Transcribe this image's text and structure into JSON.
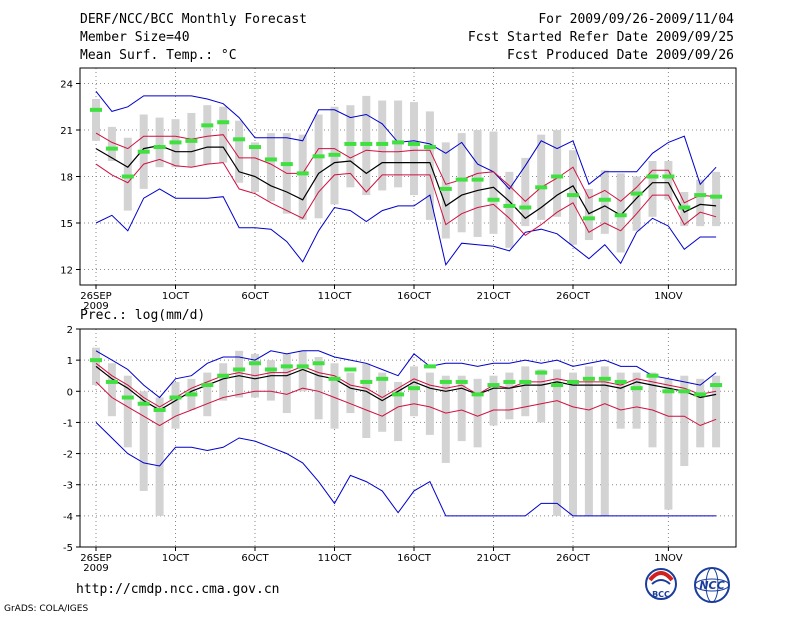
{
  "header": {
    "title": "DERF/NCC/BCC Monthly Forecast",
    "member_size": "Member Size=40",
    "variable": "Mean Surf. Temp.: °C",
    "period": "For 2009/09/26-2009/11/04",
    "started": "Fcst Started Refer Date 2009/09/25",
    "produced": "Fcst Produced Date 2009/09/26"
  },
  "footer": {
    "url": "http://cmdp.ncc.cma.gov.cn",
    "credit": "GrADS: COLA/IGES"
  },
  "logos": {
    "bcc_text": "BCC",
    "ncc_text": "NCC"
  },
  "colors": {
    "spread": "#d3d3d3",
    "median": "#40e040",
    "mean": "#000000",
    "std": "#d01040",
    "minmax": "#0000cc",
    "grid": "#888888"
  },
  "chart_data": [
    {
      "type": "line",
      "title": "Mean Surf. Temp.: °C",
      "x_tick_labels": [
        "26SEP",
        "1OCT",
        "6OCT",
        "11OCT",
        "16OCT",
        "21OCT",
        "26OCT",
        "1NOV"
      ],
      "x_year_label": "2009",
      "days": 40,
      "ylim": [
        11,
        25
      ],
      "yticks": [
        12,
        15,
        18,
        21,
        24
      ],
      "series": [
        {
          "name": "max",
          "values": [
            23.5,
            22.2,
            22.5,
            23.2,
            23.2,
            23.2,
            23.2,
            23,
            22.7,
            21.8,
            20.5,
            20.5,
            20.5,
            20.3,
            22.3,
            22.3,
            21.8,
            22,
            21.4,
            20.2,
            20.3,
            20.1,
            19.5,
            20.2,
            18.8,
            18.3,
            17.2,
            18.7,
            20.3,
            19.8,
            20.3,
            17.5,
            18.3,
            18.3,
            18.3,
            19.5,
            20.2,
            20.6,
            17.5,
            18.6
          ]
        },
        {
          "name": "mean_plus_std",
          "values": [
            20.8,
            20.2,
            19.8,
            20.6,
            20.6,
            20.6,
            20.4,
            20.6,
            20.7,
            19.2,
            19.2,
            18.8,
            18.2,
            18.2,
            19.8,
            19.8,
            19.2,
            19.7,
            19.6,
            19.6,
            19.7,
            19.7,
            17.5,
            17.8,
            18.2,
            18.3,
            17.4,
            16.4,
            17.3,
            17.9,
            18.6,
            16.6,
            17.1,
            16.4,
            17.3,
            18.4,
            18.4,
            16.3,
            16.8,
            16.7
          ]
        },
        {
          "name": "mean",
          "values": [
            19.8,
            19.2,
            18.6,
            19.8,
            20,
            19.6,
            19.6,
            19.9,
            19.9,
            18.3,
            18,
            17.4,
            17,
            16.5,
            18.2,
            18.9,
            19,
            18.2,
            18.9,
            18.9,
            18.9,
            18.9,
            16.1,
            16.8,
            17.1,
            17.3,
            16.4,
            15.3,
            16,
            16.8,
            17.4,
            15.6,
            16.1,
            15.5,
            16.6,
            17.6,
            17.6,
            15.7,
            16.2,
            16.1
          ]
        },
        {
          "name": "mean_minus_std",
          "values": [
            18.8,
            18.1,
            17.6,
            18.8,
            19.1,
            18.7,
            18.6,
            18.8,
            18.9,
            17.2,
            16.9,
            16.3,
            15.8,
            15.3,
            17,
            18.1,
            18.2,
            17,
            18.1,
            18.1,
            18.1,
            18.1,
            14.9,
            15.6,
            16,
            16.2,
            15.3,
            14.2,
            14.9,
            15.7,
            16.3,
            14.4,
            15,
            14.5,
            15.6,
            16.8,
            16.8,
            14.9,
            15.7,
            15.4
          ]
        },
        {
          "name": "min",
          "values": [
            15,
            15.5,
            14.5,
            16.6,
            17.2,
            16.6,
            16.6,
            16.6,
            16.7,
            14.7,
            14.7,
            14.6,
            13.8,
            12.5,
            14.5,
            16,
            15.8,
            15.1,
            15.8,
            16.1,
            16.1,
            16.8,
            12.3,
            13.7,
            13.6,
            13.5,
            13.2,
            14.4,
            14.6,
            14.3,
            13.5,
            12.7,
            13.6,
            12.4,
            14.4,
            15.3,
            14.8,
            13.3,
            14.1,
            14.1
          ]
        },
        {
          "name": "median",
          "values": [
            22.3,
            19.8,
            18,
            19.6,
            19.9,
            20.2,
            20.3,
            21.3,
            21.5,
            20.4,
            19.9,
            19.1,
            18.8,
            18.2,
            19.3,
            19.4,
            20.1,
            20.1,
            20.1,
            20.2,
            20.1,
            19.9,
            17.2,
            17.8,
            17.8,
            16.5,
            16.1,
            16,
            17.3,
            18,
            16.8,
            15.3,
            16.5,
            15.5,
            16.9,
            18,
            18,
            16,
            16.8,
            16.7
          ]
        },
        {
          "name": "spread_top",
          "values": [
            23,
            21.2,
            20.5,
            22,
            21.8,
            21.7,
            22.1,
            22.6,
            22.5,
            21.6,
            20.2,
            20.8,
            20.8,
            20.7,
            22,
            22.5,
            22.6,
            23.2,
            22.9,
            22.9,
            22.8,
            22.2,
            20.2,
            20.8,
            21,
            20.9,
            18.3,
            19.2,
            20.7,
            21,
            19.7,
            17.2,
            18.4,
            18.2,
            18,
            19,
            19,
            17,
            17.8,
            18.3
          ]
        },
        {
          "name": "spread_bottom",
          "values": [
            20.3,
            19,
            15.8,
            17.2,
            18.6,
            18.6,
            18.6,
            18.8,
            18.9,
            17.6,
            17,
            16.4,
            15.6,
            15.2,
            15.3,
            16.2,
            17.3,
            16.8,
            17.1,
            17.3,
            16.8,
            15.2,
            14,
            14.4,
            14.1,
            14.3,
            13.4,
            14.8,
            15.2,
            15.4,
            13.6,
            13.9,
            14.3,
            13.1,
            14.5,
            15.4,
            16.5,
            14.8,
            14.8,
            14.8
          ]
        }
      ]
    },
    {
      "type": "line",
      "title": "Prec.: log(mm/d)",
      "x_tick_labels": [
        "26SEP",
        "1OCT",
        "6OCT",
        "11OCT",
        "16OCT",
        "21OCT",
        "26OCT",
        "1NOV"
      ],
      "x_year_label": "2009",
      "days": 40,
      "ylim": [
        -5,
        2
      ],
      "yticks": [
        -5,
        -4,
        -3,
        -2,
        -1,
        0,
        1,
        2
      ],
      "series": [
        {
          "name": "max",
          "values": [
            1.3,
            1,
            0.7,
            0.2,
            -0.2,
            0.4,
            0.5,
            0.9,
            1.1,
            1.1,
            1,
            1.3,
            1.2,
            1.3,
            1.3,
            1.1,
            1,
            0.9,
            0.7,
            0.5,
            1.2,
            0.8,
            0.9,
            0.9,
            0.8,
            0.9,
            0.9,
            1,
            0.9,
            1,
            0.8,
            0.9,
            1,
            0.8,
            0.8,
            0.5,
            0.4,
            0.3,
            0.2,
            0.6
          ]
        },
        {
          "name": "mean_plus_std",
          "values": [
            0.9,
            0.5,
            0.2,
            -0.2,
            -0.5,
            -0.2,
            0.1,
            0.3,
            0.5,
            0.6,
            0.5,
            0.6,
            0.6,
            0.8,
            0.6,
            0.5,
            0.2,
            0.1,
            -0.2,
            0.1,
            0.4,
            0.2,
            0.1,
            0.2,
            -0.1,
            0.2,
            0.1,
            0.3,
            0.3,
            0.4,
            0.3,
            0.3,
            0.3,
            0.2,
            0.4,
            0.3,
            0.2,
            0.1,
            -0.1,
            0
          ]
        },
        {
          "name": "mean",
          "values": [
            0.8,
            0.4,
            0.1,
            -0.3,
            -0.6,
            -0.3,
            0,
            0.2,
            0.4,
            0.5,
            0.4,
            0.5,
            0.5,
            0.7,
            0.5,
            0.4,
            0.1,
            0,
            -0.3,
            0,
            0.3,
            0.1,
            0,
            0.1,
            -0.1,
            0.1,
            0.1,
            0.2,
            0.2,
            0.3,
            0.2,
            0.2,
            0.2,
            0.1,
            0.3,
            0.2,
            0.1,
            0,
            -0.2,
            -0.1
          ]
        },
        {
          "name": "mean_minus_std",
          "values": [
            0.3,
            -0.2,
            -0.5,
            -0.8,
            -1.1,
            -0.8,
            -0.6,
            -0.4,
            -0.2,
            -0.1,
            0,
            0,
            -0.1,
            0.1,
            0,
            -0.2,
            -0.4,
            -0.6,
            -0.8,
            -0.5,
            -0.4,
            -0.5,
            -0.7,
            -0.6,
            -0.8,
            -0.6,
            -0.6,
            -0.5,
            -0.4,
            -0.3,
            -0.5,
            -0.6,
            -0.4,
            -0.6,
            -0.5,
            -0.6,
            -0.8,
            -0.8,
            -1.1,
            -0.9
          ]
        },
        {
          "name": "min",
          "values": [
            -1,
            -1.5,
            -2,
            -2.3,
            -2.4,
            -1.8,
            -1.8,
            -1.9,
            -1.8,
            -1.5,
            -1.6,
            -1.8,
            -2,
            -2.3,
            -2.9,
            -3.6,
            -2.7,
            -2.9,
            -3.2,
            -3.9,
            -3.2,
            -2.9,
            -4,
            -4,
            -4,
            -4,
            -4,
            -4,
            -3.6,
            -3.6,
            -4,
            -4,
            -4,
            -4,
            -4,
            -4,
            -4,
            -4,
            -4,
            -4
          ]
        },
        {
          "name": "median",
          "values": [
            1,
            0.3,
            -0.2,
            -0.4,
            -0.6,
            -0.2,
            -0.1,
            0.2,
            0.5,
            0.7,
            0.9,
            0.7,
            0.8,
            0.8,
            0.9,
            0.4,
            0.7,
            0.3,
            0.4,
            -0.1,
            0.1,
            0.8,
            0.3,
            0.3,
            -0.1,
            0.2,
            0.3,
            0.3,
            0.6,
            0.2,
            0.3,
            0.4,
            0.4,
            0.3,
            0.1,
            0.5,
            0,
            0,
            -0.1,
            0.2
          ]
        },
        {
          "name": "spread_top",
          "values": [
            1.4,
            0.9,
            0.5,
            0,
            -0.2,
            0.3,
            0.4,
            0.6,
            0.9,
            1.3,
            1.2,
            1,
            1.2,
            1.3,
            1.1,
            0.9,
            0.6,
            0.9,
            0.6,
            0.3,
            0.8,
            0.6,
            0.5,
            0.5,
            0.4,
            0.5,
            0.6,
            0.8,
            0.7,
            0.7,
            0.6,
            0.8,
            0.8,
            0.6,
            0.6,
            0.6,
            0.4,
            0.5,
            0.4,
            0.5
          ]
        },
        {
          "name": "spread_bottom",
          "values": [
            0.2,
            -0.8,
            -1.8,
            -3.2,
            -4,
            -1.2,
            -0.6,
            -0.8,
            -0.3,
            -0.2,
            -0.2,
            -0.3,
            -0.7,
            0,
            -0.9,
            -1.2,
            -0.7,
            -1.5,
            -1.3,
            -1.6,
            -0.8,
            -1.4,
            -2.3,
            -1.6,
            -1.8,
            -1.1,
            -0.9,
            -0.8,
            -1,
            -4,
            -4,
            -4,
            -4,
            -1.2,
            -1.2,
            -1.8,
            -3.8,
            -2.4,
            -1.8,
            -1.8
          ]
        }
      ]
    }
  ]
}
